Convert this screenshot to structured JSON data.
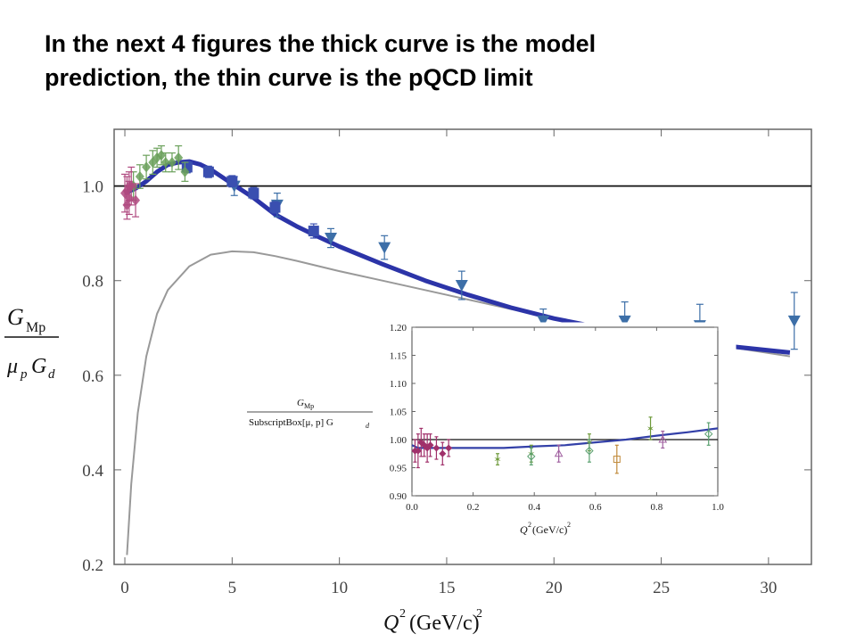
{
  "slide": {
    "title_line1": "In the next 4 figures the thick curve is the model",
    "title_line2": "prediction, the thin curve is the pQCD limit"
  },
  "chart_data": [
    {
      "type": "scatter",
      "title": "",
      "xlabel": "Q^2(GeV/c)^2",
      "ylabel": "G_Mp / (μ_p G_d)",
      "xlim": [
        -0.5,
        32
      ],
      "ylim": [
        0.2,
        1.12
      ],
      "xticks": [
        0,
        5,
        10,
        15,
        20,
        25,
        30
      ],
      "yticks": [
        0.2,
        0.4,
        0.6,
        0.8,
        1.0
      ],
      "xtick_labels": [
        "0",
        "5",
        "10",
        "15",
        "20",
        "25",
        "30"
      ],
      "ytick_labels": [
        "0.2",
        "0.4",
        "0.6",
        "0.8",
        "1.0"
      ],
      "reference_line_y": 1.0,
      "grid": false,
      "colors": {
        "model": "#2c34a8",
        "pqcd": "#999999",
        "triangles": "#3d6fa8",
        "squares": "#3a4fb0",
        "low_q_green": "#6aa05a",
        "low_q_magenta": "#b04a80"
      },
      "series": [
        {
          "kind": "model_curve",
          "x": [
            0,
            0.5,
            1,
            1.5,
            2,
            2.5,
            3,
            3.5,
            4,
            5,
            6,
            7,
            8,
            9,
            10,
            12,
            14,
            16,
            18,
            20,
            22,
            24,
            26,
            28,
            31
          ],
          "y": [
            0.985,
            0.995,
            1.01,
            1.03,
            1.045,
            1.05,
            1.052,
            1.046,
            1.035,
            1.005,
            0.975,
            0.94,
            0.915,
            0.893,
            0.872,
            0.835,
            0.8,
            0.77,
            0.743,
            0.72,
            0.702,
            0.685,
            0.672,
            0.662,
            0.648
          ]
        },
        {
          "kind": "pqcd_curve",
          "x": [
            0.1,
            0.3,
            0.6,
            1,
            1.5,
            2,
            3,
            4,
            5,
            6,
            7,
            8,
            10,
            12,
            15,
            18,
            21,
            24,
            27,
            31
          ],
          "y": [
            0.22,
            0.37,
            0.52,
            0.64,
            0.73,
            0.78,
            0.83,
            0.855,
            0.862,
            0.86,
            0.852,
            0.842,
            0.82,
            0.8,
            0.77,
            0.74,
            0.712,
            0.69,
            0.668,
            0.64
          ]
        },
        {
          "kind": "triangles",
          "x": [
            5.1,
            7.1,
            9.6,
            12.1,
            15.7,
            19.5,
            23.3,
            26.8,
            31.2
          ],
          "y": [
            1.0,
            0.96,
            0.89,
            0.87,
            0.79,
            0.715,
            0.715,
            0.705,
            0.715
          ],
          "err": [
            0.02,
            0.025,
            0.02,
            0.025,
            0.03,
            0.025,
            0.04,
            0.045,
            0.06
          ]
        },
        {
          "kind": "squares",
          "x": [
            2.9,
            3.9,
            5.0,
            6.0,
            7.0,
            8.8
          ],
          "y": [
            1.04,
            1.03,
            1.01,
            0.985,
            0.955,
            0.905
          ],
          "err": [
            0.012,
            0.012,
            0.012,
            0.012,
            0.012,
            0.015
          ]
        },
        {
          "kind": "low_q_green",
          "x": [
            0.4,
            0.7,
            1.0,
            1.3,
            1.5,
            1.7,
            1.9,
            2.2,
            2.5,
            2.8
          ],
          "y": [
            1.0,
            1.02,
            1.04,
            1.05,
            1.06,
            1.065,
            1.05,
            1.05,
            1.06,
            1.03
          ],
          "err": [
            0.03,
            0.025,
            0.025,
            0.025,
            0.02,
            0.02,
            0.02,
            0.02,
            0.025,
            0.02
          ]
        },
        {
          "kind": "low_q_magenta",
          "x": [
            0.0,
            0.1,
            0.2,
            0.3,
            0.5,
            0.1,
            0.2
          ],
          "y": [
            0.985,
            0.99,
            0.975,
            1.0,
            0.97,
            0.96,
            1.0
          ],
          "err": [
            0.04,
            0.03,
            0.035,
            0.04,
            0.035,
            0.03,
            0.03
          ]
        }
      ]
    },
    {
      "type": "scatter",
      "title": "",
      "xlabel": "Q^2(GeV/c)^2",
      "ylabel": "G_Mp / SubscriptBox[μ, p] G_d",
      "ylabel_num": "G",
      "ylabel_num_sub": "Mp",
      "ylabel_den": "SubscriptBox[μ, p] G",
      "ylabel_den_sub": "d",
      "xlim": [
        0.0,
        1.0
      ],
      "ylim": [
        0.9,
        1.2
      ],
      "xticks": [
        0.0,
        0.2,
        0.4,
        0.6,
        0.8,
        1.0
      ],
      "yticks": [
        0.9,
        0.95,
        1.0,
        1.05,
        1.1,
        1.15,
        1.2
      ],
      "xtick_labels": [
        "0.0",
        "0.2",
        "0.4",
        "0.6",
        "0.8",
        "1.0"
      ],
      "ytick_labels": [
        "0.90",
        "0.95",
        "1.00",
        "1.05",
        "1.10",
        "1.15",
        "1.20"
      ],
      "reference_line_y": 1.0,
      "grid": false,
      "series": [
        {
          "kind": "model_curve",
          "x": [
            0.0,
            0.02,
            0.05,
            0.1,
            0.2,
            0.3,
            0.4,
            0.5,
            0.6,
            0.7,
            0.8,
            0.9,
            1.0
          ],
          "y": [
            0.99,
            0.985,
            0.985,
            0.985,
            0.985,
            0.985,
            0.988,
            0.99,
            0.995,
            1.0,
            1.007,
            1.013,
            1.02
          ]
        },
        {
          "kind": "magenta_diamonds",
          "x": [
            0.01,
            0.02,
            0.03,
            0.04,
            0.05,
            0.06,
            0.08,
            0.1,
            0.12
          ],
          "y": [
            0.98,
            0.98,
            0.995,
            0.99,
            0.985,
            0.99,
            0.985,
            0.975,
            0.985
          ],
          "err": [
            0.02,
            0.03,
            0.025,
            0.02,
            0.025,
            0.02,
            0.02,
            0.02,
            0.015
          ]
        },
        {
          "kind": "stars",
          "x": [
            0.28,
            0.39,
            0.58,
            0.78
          ],
          "y": [
            0.965,
            0.975,
            0.995,
            1.02
          ],
          "err": [
            0.01,
            0.015,
            0.015,
            0.02
          ]
        },
        {
          "kind": "open_triangles",
          "x": [
            0.48,
            0.82
          ],
          "y": [
            0.975,
            1.0
          ],
          "err": [
            0.015,
            0.015
          ]
        },
        {
          "kind": "open_diamonds",
          "x": [
            0.39,
            0.58,
            0.97
          ],
          "y": [
            0.97,
            0.98,
            1.01
          ],
          "err": [
            0.015,
            0.02,
            0.02
          ]
        },
        {
          "kind": "open_squares",
          "x": [
            0.67
          ],
          "y": [
            0.965
          ],
          "err": [
            0.025
          ]
        }
      ]
    }
  ]
}
